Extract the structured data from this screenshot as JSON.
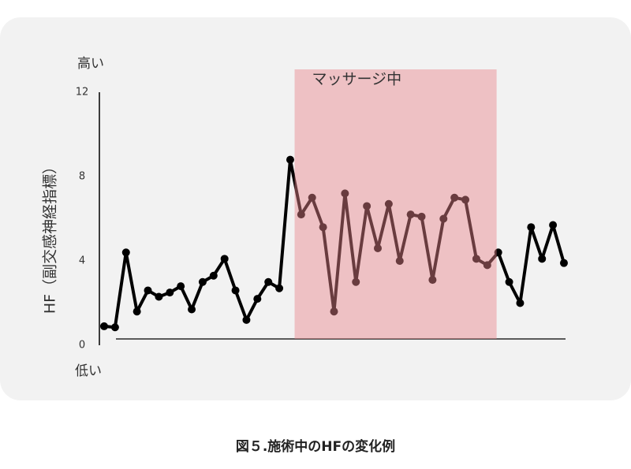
{
  "chart_data": {
    "type": "line",
    "caption": "図５.施術中のHFの変化例",
    "y_label": "HF（副交感神経指標）",
    "y_top_label": "高い",
    "y_bottom_label": "低い",
    "categories": [
      null,
      null,
      null,
      null,
      null,
      null,
      null,
      null,
      null,
      null,
      null,
      null,
      null,
      null,
      null,
      null,
      null,
      null,
      null,
      null,
      null,
      null,
      null,
      null,
      null,
      null,
      null,
      null,
      null,
      null,
      null,
      null,
      null,
      null,
      null,
      null,
      null,
      null,
      null,
      null,
      null,
      null,
      null
    ],
    "series": [
      {
        "name": "HF",
        "color": "#000000",
        "values": [
          0.9,
          0.85,
          4.4,
          1.6,
          2.6,
          2.3,
          2.5,
          2.8,
          1.7,
          3.0,
          3.3,
          4.1,
          2.6,
          1.2,
          2.2,
          3.0,
          2.7,
          8.8,
          6.2,
          7.0,
          5.6,
          1.6,
          7.2,
          3.0,
          6.6,
          4.6,
          6.7,
          4.0,
          6.2,
          6.1,
          3.1,
          6.0,
          7.0,
          6.9,
          4.1,
          3.8,
          4.4,
          3.0,
          2.0,
          5.6,
          4.1,
          5.7,
          3.9
        ]
      }
    ],
    "shaded_region": {
      "label": "マッサージ中",
      "start": 17.4,
      "end": 35.85,
      "color": "#e8868c"
    },
    "ylim": [
      0,
      12
    ],
    "yticks": [
      0,
      4,
      8,
      12
    ]
  }
}
